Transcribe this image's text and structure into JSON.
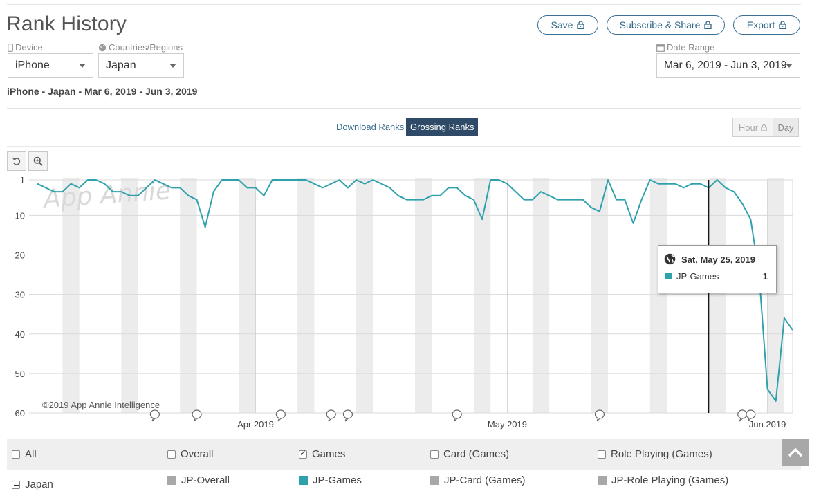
{
  "header": {
    "title": "Rank History",
    "save_label": "Save",
    "subscribe_label": "Subscribe & Share",
    "export_label": "Export"
  },
  "filters": {
    "device_label": "Device",
    "device_value": "iPhone",
    "country_label": "Countries/Regions",
    "country_value": "Japan",
    "date_label": "Date Range",
    "date_value": "Mar 6, 2019 - Jun 3, 2019"
  },
  "summary": "iPhone - Japan - Mar 6, 2019 - Jun 3, 2019",
  "tabs": {
    "download": "Download Ranks",
    "grossing": "Grossing Ranks"
  },
  "granularity": {
    "hour": "Hour",
    "day": "Day"
  },
  "watermark": "App Annie",
  "copyright": "©2019 App Annie Intelligence",
  "tooltip": {
    "date": "Sat, May 25, 2019",
    "series": "JP-Games",
    "value": "1"
  },
  "legend": {
    "checks": [
      {
        "label": "All",
        "checked": false
      },
      {
        "label": "Overall",
        "checked": false
      },
      {
        "label": "Games",
        "checked": true
      },
      {
        "label": "Card (Games)",
        "checked": false
      },
      {
        "label": "Role Playing (Games)",
        "checked": false
      }
    ],
    "country": "Japan",
    "series": [
      {
        "label": "JP-Overall",
        "color": "#a8a8a8"
      },
      {
        "label": "JP-Games",
        "color": "#2ea1ad"
      },
      {
        "label": "JP-Card (Games)",
        "color": "#a8a8a8"
      },
      {
        "label": "JP-Role Playing (Games)",
        "color": "#a8a8a8"
      }
    ]
  },
  "colors": {
    "line": "#2ea1ad",
    "accent": "#2e4a66",
    "button_outline": "#3a6f93"
  },
  "chart_data": {
    "type": "line",
    "y_reversed": true,
    "ylim": [
      1,
      60
    ],
    "yticks": [
      1,
      10,
      20,
      30,
      40,
      50,
      60
    ],
    "xticks": [
      "Apr 2019",
      "May 2019",
      "Jun 2019"
    ],
    "x_start": "2019-03-06",
    "x_end": "2019-06-03",
    "grid": true,
    "series": [
      {
        "name": "JP-Games",
        "values": [
          2,
          3,
          4,
          4,
          2,
          3,
          1,
          1,
          2,
          4,
          4,
          5,
          5,
          3,
          1,
          2,
          3,
          3,
          5,
          6,
          13,
          4,
          1,
          1,
          1,
          3,
          3,
          5,
          1,
          1,
          1,
          1,
          1,
          2,
          3,
          2,
          1,
          3,
          1,
          2,
          1,
          2,
          3,
          5,
          6,
          6,
          6,
          5,
          5,
          3,
          3,
          5,
          6,
          11,
          1,
          1,
          2,
          4,
          6,
          6,
          4,
          5,
          6,
          6,
          6,
          6,
          8,
          9,
          1,
          6,
          6,
          12,
          6,
          1,
          2,
          2,
          2,
          3,
          2,
          2,
          3,
          1,
          3,
          4,
          7,
          11,
          25,
          54,
          57,
          36,
          39
        ]
      }
    ]
  }
}
